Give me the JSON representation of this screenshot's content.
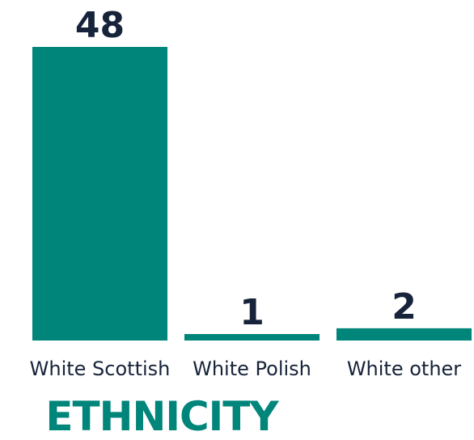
{
  "chart_data": {
    "type": "bar",
    "title": "ETHNICITY",
    "categories": [
      "White Scottish",
      "White Polish",
      "White other"
    ],
    "values": [
      48,
      1,
      2
    ],
    "ylim": [
      0,
      48
    ],
    "grid": false,
    "bar_color": "#00857a",
    "text_color": "#17233a"
  }
}
